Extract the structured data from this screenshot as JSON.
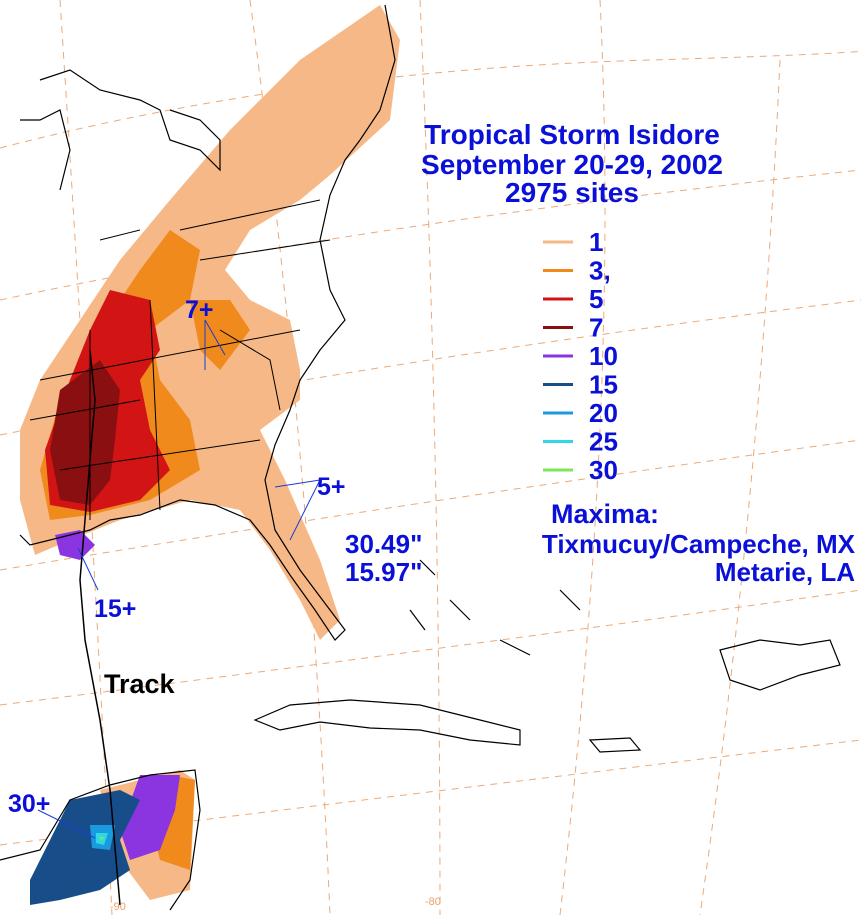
{
  "title": {
    "line1": "Tropical Storm Isidore",
    "line2": "September 20-29, 2002",
    "line3": "2975 sites"
  },
  "legend": {
    "items": [
      {
        "label": "1",
        "color": "#f6b887"
      },
      {
        "label": "3,",
        "color": "#f08a1c"
      },
      {
        "label": "5",
        "color": "#d21414"
      },
      {
        "label": "7",
        "color": "#8a0f10"
      },
      {
        "label": "10",
        "color": "#8a35e0"
      },
      {
        "label": "15",
        "color": "#174e8a"
      },
      {
        "label": "20",
        "color": "#1a9be0"
      },
      {
        "label": "25",
        "color": "#2fd8e6"
      },
      {
        "label": "30",
        "color": "#7fe655"
      }
    ]
  },
  "maxima": {
    "heading": "Maxima:",
    "rows": [
      {
        "value": "30.49\"",
        "location": "Tixmucuy/Campeche, MX"
      },
      {
        "value": "15.97\"",
        "location": "Metarie, LA"
      }
    ]
  },
  "annotations": {
    "track": "Track",
    "a7": "7+",
    "a5": "5+",
    "a15": "15+",
    "a30": "30+"
  },
  "grid_labels": {
    "lon90": "-90",
    "lon80": "-80"
  },
  "colors": {
    "text": "#0a10d8",
    "grid": "#eda977"
  }
}
